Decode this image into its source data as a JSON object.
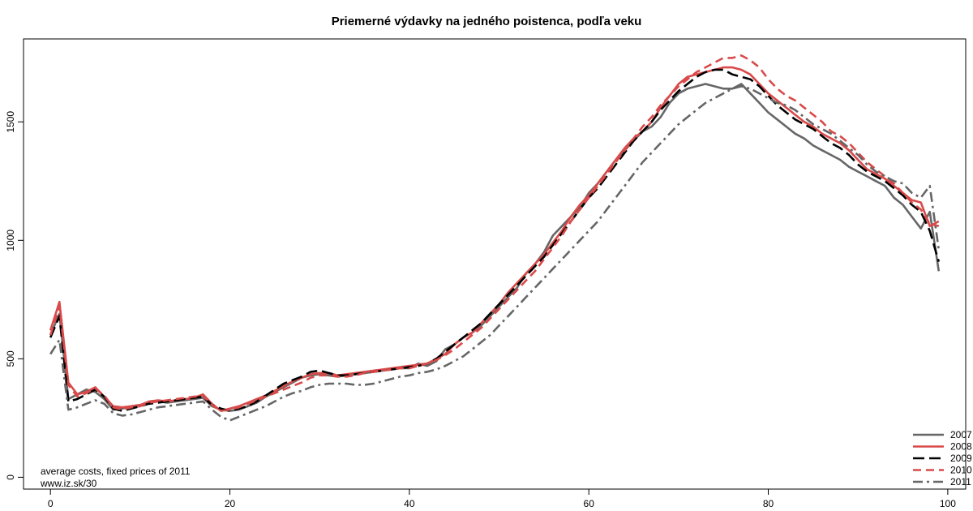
{
  "chart_data": {
    "type": "line",
    "title": "Priemerné výdavky na jedného poistenca, podľa veku",
    "xlabel": "",
    "ylabel": "",
    "xlim": [
      -3,
      102
    ],
    "ylim": [
      -50,
      1850
    ],
    "xticks": [
      0,
      20,
      40,
      60,
      80,
      100
    ],
    "yticks": [
      0,
      500,
      1000,
      1500
    ],
    "grid": false,
    "legend_position": "bottom-right",
    "notes": [
      "average costs, fixed prices of 2011",
      "www.iz.sk/30"
    ],
    "x": [
      0,
      1,
      2,
      3,
      4,
      5,
      6,
      7,
      8,
      9,
      10,
      11,
      12,
      13,
      14,
      15,
      16,
      17,
      18,
      19,
      20,
      21,
      22,
      23,
      24,
      25,
      26,
      27,
      28,
      29,
      30,
      31,
      32,
      33,
      34,
      35,
      36,
      37,
      38,
      39,
      40,
      41,
      42,
      43,
      44,
      45,
      46,
      47,
      48,
      49,
      50,
      51,
      52,
      53,
      54,
      55,
      56,
      57,
      58,
      59,
      60,
      61,
      62,
      63,
      64,
      65,
      66,
      67,
      68,
      69,
      70,
      71,
      72,
      73,
      74,
      75,
      76,
      77,
      78,
      79,
      80,
      81,
      82,
      83,
      84,
      85,
      86,
      87,
      88,
      89,
      90,
      91,
      92,
      93,
      94,
      95,
      96,
      97,
      98,
      99
    ],
    "series": [
      {
        "name": "2007",
        "color": "#666666",
        "dash": "solid",
        "values": [
          600,
          690,
          330,
          350,
          370,
          360,
          330,
          285,
          290,
          300,
          305,
          315,
          320,
          315,
          320,
          325,
          330,
          335,
          300,
          285,
          280,
          285,
          300,
          315,
          340,
          360,
          380,
          400,
          420,
          430,
          435,
          430,
          425,
          430,
          435,
          440,
          445,
          450,
          455,
          460,
          460,
          480,
          470,
          490,
          540,
          560,
          590,
          610,
          640,
          680,
          720,
          760,
          800,
          860,
          900,
          950,
          1020,
          1060,
          1100,
          1140,
          1200,
          1240,
          1290,
          1340,
          1380,
          1420,
          1460,
          1480,
          1520,
          1580,
          1620,
          1640,
          1650,
          1660,
          1650,
          1640,
          1640,
          1660,
          1620,
          1580,
          1540,
          1510,
          1480,
          1450,
          1430,
          1400,
          1380,
          1360,
          1340,
          1310,
          1290,
          1270,
          1250,
          1230,
          1180,
          1150,
          1100,
          1050,
          1120,
          870
        ]
      },
      {
        "name": "2008",
        "color": "#d94a4a",
        "dash": "solid",
        "values": [
          620,
          740,
          400,
          350,
          360,
          380,
          340,
          300,
          295,
          300,
          305,
          320,
          325,
          320,
          325,
          330,
          335,
          350,
          310,
          280,
          290,
          300,
          315,
          330,
          345,
          365,
          385,
          405,
          420,
          435,
          440,
          440,
          430,
          435,
          440,
          445,
          450,
          455,
          460,
          465,
          470,
          475,
          480,
          500,
          520,
          560,
          590,
          610,
          650,
          690,
          730,
          780,
          820,
          860,
          900,
          940,
          990,
          1040,
          1100,
          1150,
          1190,
          1240,
          1290,
          1340,
          1390,
          1430,
          1460,
          1500,
          1560,
          1610,
          1660,
          1690,
          1700,
          1710,
          1720,
          1730,
          1730,
          1720,
          1700,
          1660,
          1620,
          1590,
          1560,
          1530,
          1500,
          1480,
          1450,
          1430,
          1410,
          1380,
          1340,
          1300,
          1280,
          1260,
          1230,
          1200,
          1170,
          1160,
          1060,
          1080
        ]
      },
      {
        "name": "2009",
        "color": "#000000",
        "dash": "longdash",
        "values": [
          590,
          680,
          320,
          330,
          350,
          370,
          340,
          290,
          280,
          290,
          300,
          310,
          315,
          320,
          325,
          330,
          335,
          340,
          305,
          290,
          280,
          290,
          300,
          320,
          345,
          370,
          395,
          410,
          425,
          445,
          450,
          440,
          430,
          430,
          435,
          440,
          445,
          450,
          455,
          460,
          465,
          470,
          480,
          500,
          530,
          560,
          590,
          620,
          650,
          690,
          730,
          770,
          810,
          850,
          890,
          930,
          980,
          1030,
          1080,
          1130,
          1180,
          1220,
          1270,
          1320,
          1370,
          1420,
          1460,
          1500,
          1550,
          1590,
          1630,
          1660,
          1690,
          1710,
          1720,
          1720,
          1700,
          1690,
          1680,
          1650,
          1610,
          1570,
          1540,
          1510,
          1490,
          1470,
          1440,
          1410,
          1390,
          1360,
          1320,
          1290,
          1270,
          1250,
          1220,
          1190,
          1150,
          1120,
          1040,
          910
        ]
      },
      {
        "name": "2010",
        "color": "#d94a4a",
        "dash": "dash",
        "values": [
          600,
          720,
          390,
          340,
          355,
          375,
          345,
          295,
          285,
          295,
          300,
          315,
          320,
          325,
          330,
          335,
          340,
          345,
          305,
          280,
          285,
          295,
          310,
          325,
          340,
          355,
          370,
          385,
          400,
          420,
          430,
          430,
          425,
          425,
          430,
          440,
          445,
          450,
          455,
          460,
          460,
          470,
          480,
          495,
          515,
          540,
          570,
          600,
          630,
          670,
          710,
          750,
          790,
          830,
          870,
          920,
          970,
          1020,
          1080,
          1130,
          1180,
          1230,
          1280,
          1330,
          1380,
          1430,
          1480,
          1520,
          1570,
          1610,
          1650,
          1680,
          1710,
          1730,
          1750,
          1770,
          1770,
          1780,
          1760,
          1730,
          1680,
          1640,
          1610,
          1590,
          1560,
          1530,
          1500,
          1460,
          1440,
          1410,
          1370,
          1330,
          1300,
          1270,
          1240,
          1200,
          1160,
          1130,
          1070,
          1060
        ]
      },
      {
        "name": "2011",
        "color": "#666666",
        "dash": "dashdot",
        "values": [
          520,
          580,
          285,
          295,
          310,
          325,
          310,
          270,
          260,
          265,
          275,
          285,
          295,
          300,
          305,
          310,
          315,
          320,
          285,
          255,
          240,
          255,
          270,
          285,
          300,
          320,
          340,
          355,
          365,
          380,
          390,
          395,
          395,
          395,
          390,
          390,
          395,
          405,
          415,
          425,
          430,
          440,
          445,
          455,
          470,
          490,
          510,
          540,
          570,
          600,
          640,
          680,
          720,
          760,
          800,
          840,
          880,
          920,
          960,
          1000,
          1040,
          1080,
          1130,
          1180,
          1230,
          1280,
          1330,
          1370,
          1410,
          1450,
          1490,
          1520,
          1550,
          1580,
          1600,
          1620,
          1640,
          1650,
          1640,
          1620,
          1600,
          1580,
          1570,
          1550,
          1520,
          1490,
          1470,
          1450,
          1420,
          1390,
          1360,
          1320,
          1290,
          1270,
          1250,
          1240,
          1200,
          1180,
          1230,
          960
        ]
      }
    ]
  }
}
